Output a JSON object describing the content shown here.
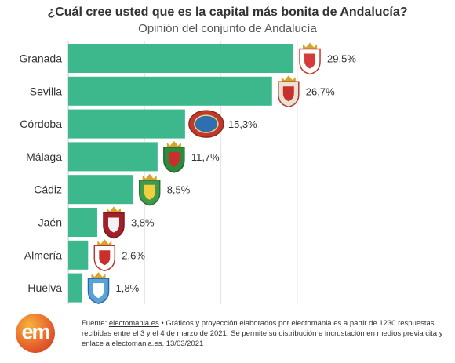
{
  "title": "¿Cuál cree usted que es la capital más bonita de Andalucía?",
  "subtitle": "Opinión del conjunto de Andalucía",
  "chart_data": {
    "type": "bar",
    "orientation": "horizontal",
    "title": "¿Cuál cree usted que es la capital más bonita de Andalucía?",
    "subtitle": "Opinión del conjunto de Andalucía",
    "categories": [
      "Granada",
      "Sevilla",
      "Córdoba",
      "Málaga",
      "Cádiz",
      "Jaén",
      "Almería",
      "Huelva"
    ],
    "values": [
      29.5,
      26.7,
      15.3,
      11.7,
      8.5,
      3.8,
      2.6,
      1.8
    ],
    "value_labels": [
      "29,5%",
      "26,7%",
      "15,3%",
      "11,7%",
      "8,5%",
      "3,8%",
      "2,6%",
      "1,8%"
    ],
    "xlim": [
      0,
      35
    ],
    "gridlines_x": [
      10,
      20,
      30
    ],
    "grid": true,
    "bar_color": "#3cb88c",
    "marker_icons": [
      "granada-shield-icon",
      "sevilla-shield-icon",
      "cordoba-seal-icon",
      "malaga-shield-icon",
      "cadiz-shield-icon",
      "jaen-shield-icon",
      "almeria-shield-icon",
      "huelva-shield-icon"
    ]
  },
  "footer": {
    "prefix": "Fuente: ",
    "link_text": "electomania.es",
    "text": " • Gráficos y proyección elaborados por electomania.es a partir de 1230 respuestas recibidas entre el 3 y el 4 de marzo de 2021. Se permite su distribución e incrustación en medios previa cita y enlace a electomania.es. 13/03/2021"
  },
  "logo_text": "em"
}
